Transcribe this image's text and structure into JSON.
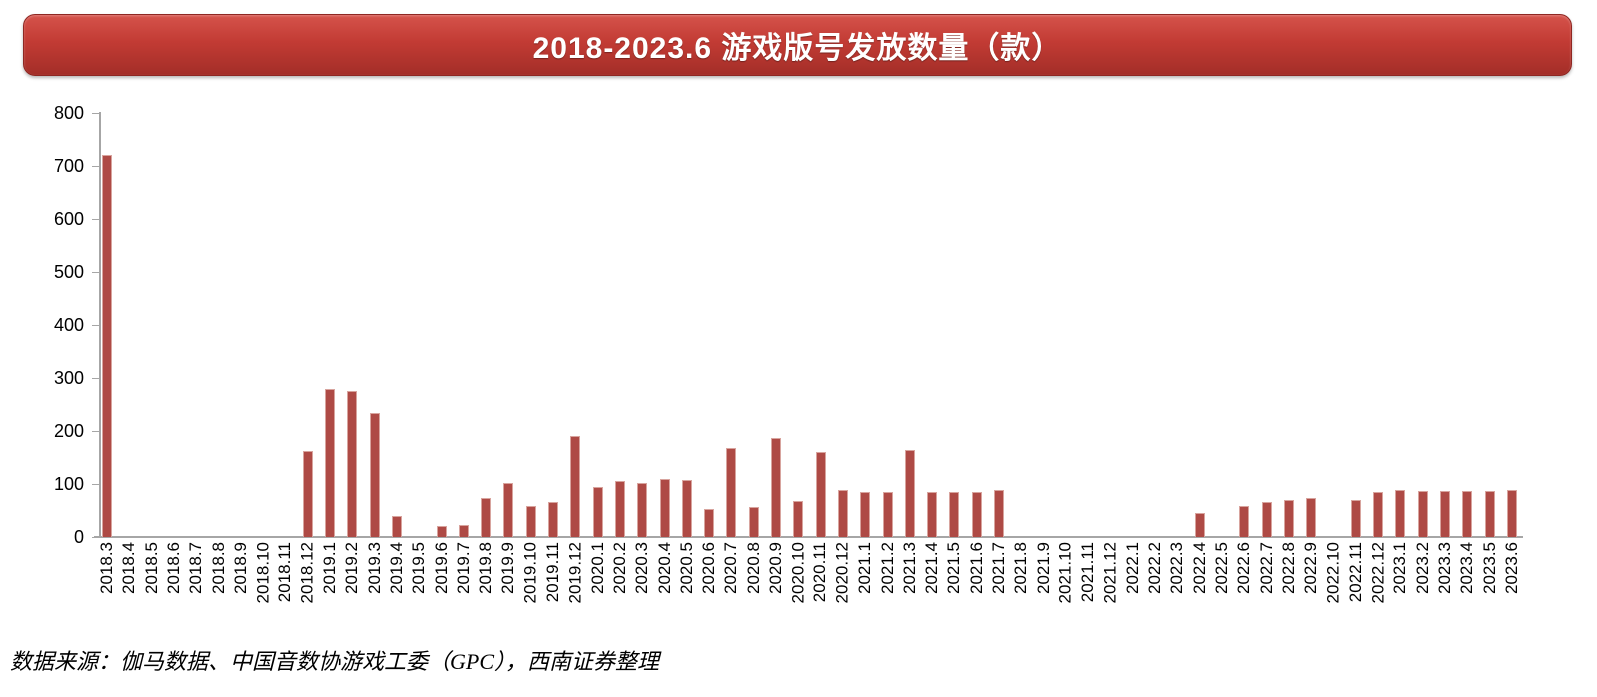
{
  "banner": {
    "title": "2018-2023.6 游戏版号发放数量（款）",
    "bg_gradient_top": "#D5534B",
    "bg_gradient_mid": "#C23B34",
    "bg_gradient_bottom": "#A32E28",
    "text_color": "#FFFFFF"
  },
  "chart_data": {
    "type": "bar",
    "title": "2018-2023.6 游戏版号发放数量（款）",
    "xlabel": "",
    "ylabel": "",
    "ylim": [
      0,
      800
    ],
    "ytick_interval": 100,
    "grid": false,
    "legend": "none",
    "bar_color": "#AE4A45",
    "bar_border_color": "#D8A49E",
    "axis_color": "#A6A6A6",
    "categories": [
      "2018.3",
      "2018.4",
      "2018.5",
      "2018.6",
      "2018.7",
      "2018.8",
      "2018.9",
      "2018.10",
      "2018.11",
      "2018.12",
      "2019.1",
      "2019.2",
      "2019.3",
      "2019.4",
      "2019.5",
      "2019.6",
      "2019.7",
      "2019.8",
      "2019.9",
      "2019.10",
      "2019.11",
      "2019.12",
      "2020.1",
      "2020.2",
      "2020.3",
      "2020.4",
      "2020.5",
      "2020.6",
      "2020.7",
      "2020.8",
      "2020.9",
      "2020.10",
      "2020.11",
      "2020.12",
      "2021.1",
      "2021.2",
      "2021.3",
      "2021.4",
      "2021.5",
      "2021.6",
      "2021.7",
      "2021.8",
      "2021.9",
      "2021.10",
      "2021.11",
      "2021.12",
      "2022.1",
      "2022.2",
      "2022.3",
      "2022.4",
      "2022.5",
      "2022.6",
      "2022.7",
      "2022.8",
      "2022.9",
      "2022.10",
      "2022.11",
      "2022.12",
      "2023.1",
      "2023.2",
      "2023.3",
      "2023.4",
      "2023.5",
      "2023.6"
    ],
    "values": [
      720,
      0,
      0,
      0,
      0,
      0,
      0,
      0,
      0,
      162,
      279,
      276,
      234,
      40,
      0,
      21,
      22,
      74,
      101,
      58,
      66,
      190,
      95,
      106,
      102,
      109,
      108,
      53,
      168,
      57,
      187,
      67,
      161,
      89,
      85,
      85,
      165,
      85,
      85,
      85,
      88,
      0,
      0,
      0,
      0,
      0,
      0,
      0,
      0,
      45,
      0,
      58,
      66,
      69,
      73,
      0,
      70,
      84,
      88,
      87,
      86,
      86,
      86,
      89
    ]
  },
  "source_note": "数据来源：伽马数据、中国音数协游戏工委（GPC），西南证券整理"
}
